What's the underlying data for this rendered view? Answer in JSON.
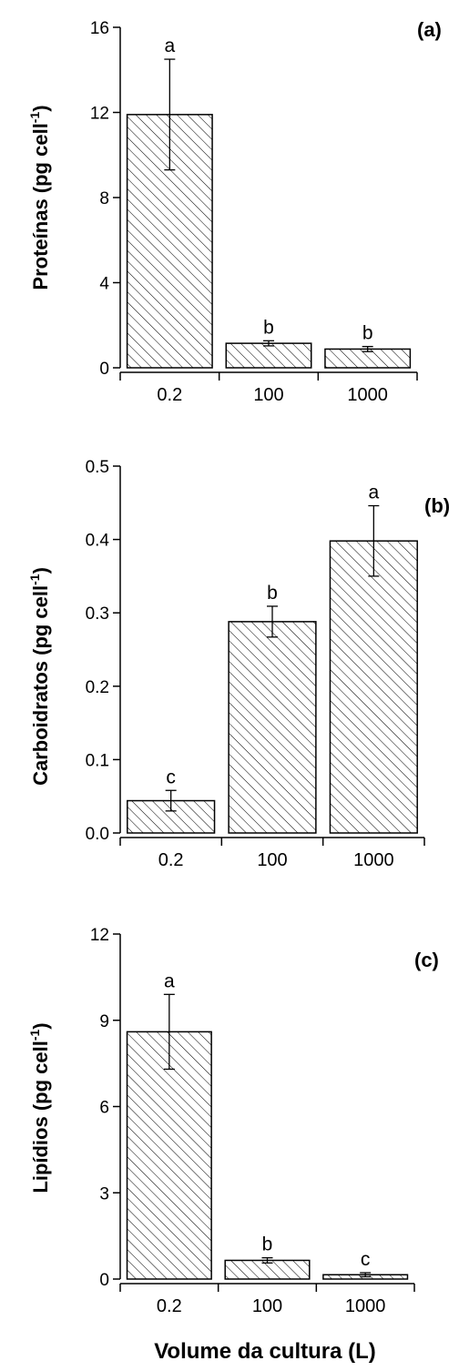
{
  "chart_data": [
    {
      "type": "bar",
      "panel_label": "(a)",
      "ylabel": "Proteínas (pg cell",
      "ylabel_sup": "-1",
      "ylabel_close": ")",
      "categories": [
        "0.2",
        "100",
        "1000"
      ],
      "values": [
        11.9,
        1.15,
        0.88
      ],
      "errors": [
        2.6,
        0.12,
        0.12
      ],
      "significance": [
        "a",
        "b",
        "b"
      ],
      "ylim": [
        0,
        16
      ],
      "yticks": [
        0,
        4,
        8,
        12,
        16
      ],
      "ytick_labels": [
        "0",
        "4",
        "8",
        "12",
        "16"
      ]
    },
    {
      "type": "bar",
      "panel_label": "(b)",
      "ylabel": "Carboidratos (pg cell",
      "ylabel_sup": "-1",
      "ylabel_close": ")",
      "categories": [
        "0.2",
        "100",
        "1000"
      ],
      "values": [
        0.044,
        0.288,
        0.398
      ],
      "errors": [
        0.014,
        0.021,
        0.048
      ],
      "significance": [
        "c",
        "b",
        "a"
      ],
      "ylim": [
        0,
        0.5
      ],
      "yticks": [
        0,
        0.1,
        0.2,
        0.3,
        0.4,
        0.5
      ],
      "ytick_labels": [
        "0.0",
        "0.1",
        "0.2",
        "0.3",
        "0.4",
        "0.5"
      ]
    },
    {
      "type": "bar",
      "panel_label": "(c)",
      "ylabel": "Lipídios (pg cell",
      "ylabel_sup": "-1",
      "ylabel_close": ")",
      "xlabel": "Volume da cultura (L)",
      "categories": [
        "0.2",
        "100",
        "1000"
      ],
      "values": [
        8.6,
        0.65,
        0.15
      ],
      "errors": [
        1.3,
        0.09,
        0.07
      ],
      "significance": [
        "a",
        "b",
        "c"
      ],
      "ylim": [
        0,
        12
      ],
      "yticks": [
        0,
        3,
        6,
        9,
        12
      ],
      "ytick_labels": [
        "0",
        "3",
        "6",
        "9",
        "12"
      ]
    }
  ],
  "bar_fill": "#ffffff",
  "bar_stroke": "#000000",
  "hatch": "diagonal-lines"
}
